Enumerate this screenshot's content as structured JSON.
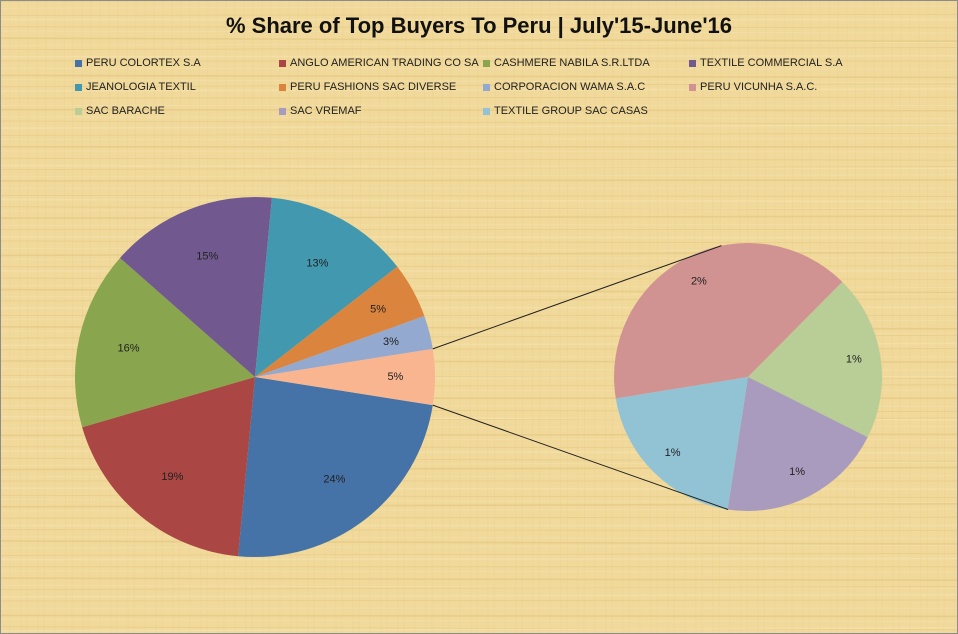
{
  "chart_data": {
    "type": "pie",
    "subtype": "pie-of-pie",
    "title": "% Share of Top Buyers To Peru | July'15-June'16",
    "legend_position": "top",
    "slices": [
      {
        "name": "PERU COLORTEX S.A",
        "value": 24,
        "label": "24%",
        "color": "#4573a7",
        "group": "main"
      },
      {
        "name": "ANGLO AMERICAN TRADING CO SA",
        "value": 19,
        "label": "19%",
        "color": "#aa4643",
        "group": "main"
      },
      {
        "name": "CASHMERE NABILA S.R.LTDA",
        "value": 16,
        "label": "16%",
        "color": "#89a54e",
        "group": "main"
      },
      {
        "name": "TEXTILE COMMERCIAL S.A",
        "value": 15,
        "label": "15%",
        "color": "#71588f",
        "group": "main"
      },
      {
        "name": "JEANOLOGIA TEXTIL",
        "value": 13,
        "label": "13%",
        "color": "#4198af",
        "group": "main"
      },
      {
        "name": "PERU FASHIONS SAC DIVERSE",
        "value": 5,
        "label": "5%",
        "color": "#db843d",
        "group": "main"
      },
      {
        "name": "CORPORACION WAMA S.A.C",
        "value": 3,
        "label": "3%",
        "color": "#93a9cf",
        "group": "main"
      },
      {
        "name": "PERU VICUNHA S.A.C.",
        "value": 2,
        "label": "2%",
        "color": "#d19392",
        "group": "secondary"
      },
      {
        "name": "SAC BARACHE",
        "value": 1,
        "label": "1%",
        "color": "#b9cd96",
        "group": "secondary"
      },
      {
        "name": "SAC VREMAF",
        "value": 1,
        "label": "1%",
        "color": "#a99bbd",
        "group": "secondary"
      },
      {
        "name": "TEXTILE GROUP SAC CASAS",
        "value": 1,
        "label": "1%",
        "color": "#91c3d5",
        "group": "secondary"
      }
    ],
    "other_slice": {
      "label": "5%",
      "value": 5,
      "color": "#f9b590"
    }
  }
}
